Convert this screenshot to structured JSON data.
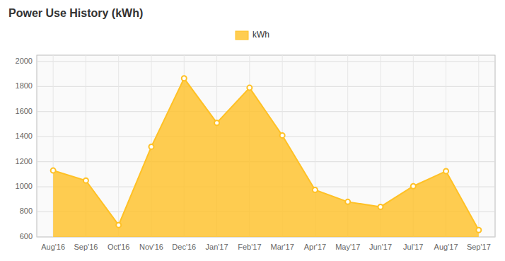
{
  "chart_data": {
    "type": "area",
    "title": "Power Use History (kWh)",
    "categories": [
      "Aug'16",
      "Sep'16",
      "Oct'16",
      "Nov'16",
      "Dec'16",
      "Jan'17",
      "Feb'17",
      "Mar'17",
      "Apr'17",
      "May'17",
      "Jun'17",
      "Jul'17",
      "Aug'17",
      "Sep'17"
    ],
    "series": [
      {
        "name": "kWh",
        "color": "#FFC125",
        "values": [
          1130,
          1050,
          695,
          1320,
          1865,
          1510,
          1790,
          1410,
          975,
          880,
          840,
          1005,
          1125,
          655
        ]
      }
    ],
    "ylim": [
      600,
      2050
    ],
    "yticks": [
      600,
      800,
      1000,
      1200,
      1400,
      1600,
      1800,
      2000
    ],
    "grid": true,
    "legend": "top"
  }
}
